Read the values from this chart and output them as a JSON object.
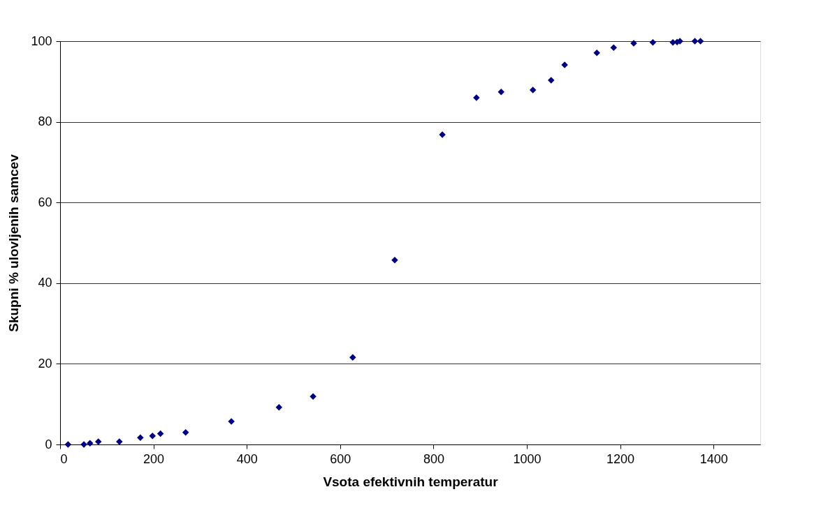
{
  "chart_data": {
    "type": "scatter",
    "xlabel": "Vsota efektivnih temperatur",
    "ylabel": "Skupni % ulovljenih samcev",
    "x": [
      17,
      51,
      64,
      82,
      127,
      172,
      198,
      215,
      269,
      367,
      469,
      542,
      627,
      717,
      819,
      892,
      945,
      1013,
      1052,
      1081,
      1150,
      1186,
      1229,
      1270,
      1313,
      1322,
      1328,
      1360,
      1372
    ],
    "series": [
      {
        "color": "#000080",
        "values": [
          0,
          0,
          0.3,
          0.7,
          0.7,
          1.7,
          2.1,
          2.7,
          3.0,
          5.7,
          9.2,
          11.9,
          21.6,
          45.7,
          76.8,
          86.0,
          87.4,
          87.9,
          90.3,
          94.1,
          97.1,
          98.4,
          99.5,
          99.7,
          99.7,
          99.8,
          100,
          100,
          100
        ]
      }
    ],
    "xlim": [
      0,
      1500
    ],
    "xticks": [
      0,
      200,
      400,
      600,
      800,
      1000,
      1200,
      1400
    ],
    "ylim": [
      0,
      100
    ],
    "yticks": [
      0,
      20,
      40,
      60,
      80,
      100
    ],
    "grid": "y",
    "marker": "diamond"
  }
}
